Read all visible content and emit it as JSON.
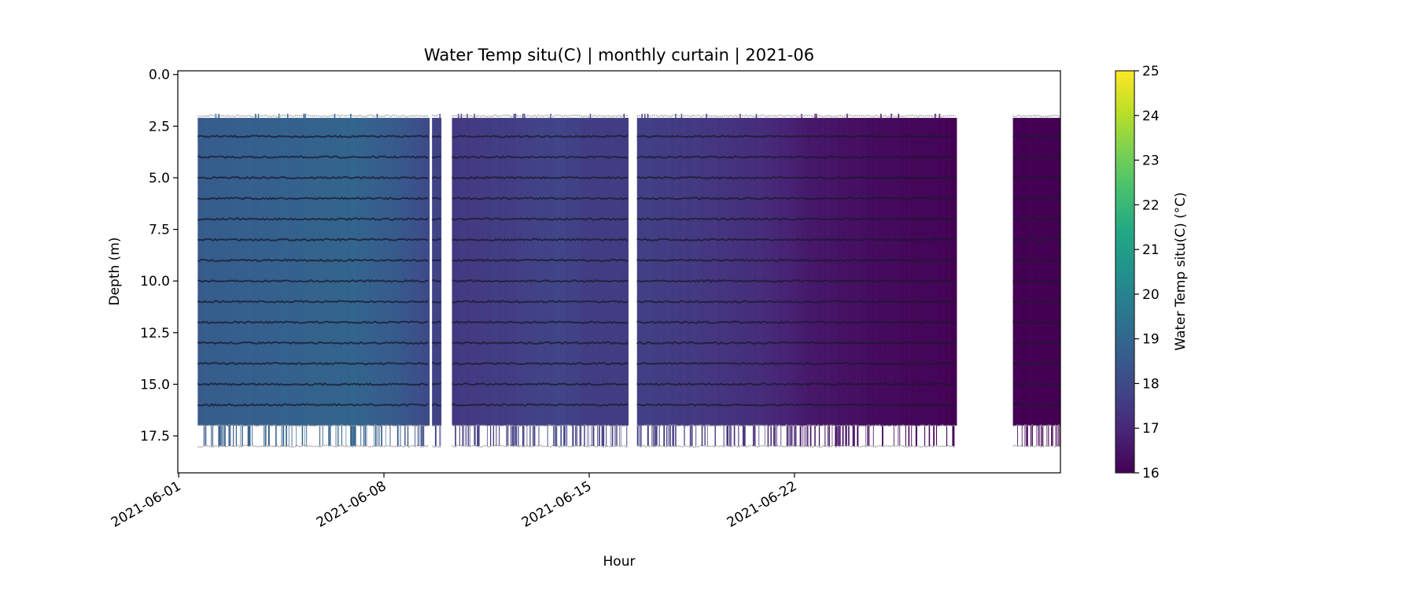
{
  "chart_data": {
    "type": "heatmap",
    "title": "Water Temp situ(C) | monthly curtain | 2021-06",
    "xlabel": "Hour",
    "ylabel": "Depth (m)",
    "x_unit": "days since 2021-06-01",
    "xlim": [
      -0.03,
      30.07
    ],
    "ylim": [
      19.29,
      -0.18
    ],
    "y_inverted": true,
    "xticks": [
      {
        "value": 0,
        "label": "2021-06-01"
      },
      {
        "value": 7,
        "label": "2021-06-08"
      },
      {
        "value": 14,
        "label": "2021-06-15"
      },
      {
        "value": 21,
        "label": "2021-06-22"
      }
    ],
    "yticks": [
      {
        "value": 0.0,
        "label": "0.0"
      },
      {
        "value": 2.5,
        "label": "2.5"
      },
      {
        "value": 5.0,
        "label": "5.0"
      },
      {
        "value": 7.5,
        "label": "7.5"
      },
      {
        "value": 10.0,
        "label": "10.0"
      },
      {
        "value": 12.5,
        "label": "12.5"
      },
      {
        "value": 15.0,
        "label": "15.0"
      },
      {
        "value": 17.5,
        "label": "17.5"
      }
    ],
    "colormap": "viridis",
    "colorbar": {
      "label": "Water Temp situ(C) (°C)",
      "range": [
        16,
        25
      ],
      "ticks": [
        {
          "value": 16,
          "label": "16"
        },
        {
          "value": 17,
          "label": "17"
        },
        {
          "value": 18,
          "label": "18"
        },
        {
          "value": 19,
          "label": "19"
        },
        {
          "value": 20,
          "label": "20"
        },
        {
          "value": 21,
          "label": "21"
        },
        {
          "value": 22,
          "label": "22"
        },
        {
          "value": 23,
          "label": "23"
        },
        {
          "value": 24,
          "label": "24"
        },
        {
          "value": 25,
          "label": "25"
        }
      ]
    },
    "segments": [
      {
        "start": 0.65,
        "end": 8.55,
        "depth_top": 2.1,
        "depth_bottom": 17.0
      },
      {
        "start": 8.64,
        "end": 8.95,
        "depth_top": 2.1,
        "depth_bottom": 17.0
      },
      {
        "start": 9.32,
        "end": 15.33,
        "depth_top": 2.1,
        "depth_bottom": 17.0
      },
      {
        "start": 15.63,
        "end": 26.53,
        "depth_top": 2.1,
        "depth_bottom": 17.0
      },
      {
        "start": 28.45,
        "end": 30.07,
        "depth_top": 2.1,
        "depth_bottom": 17.0
      }
    ],
    "temperature_trend": [
      [
        0.65,
        18.6
      ],
      [
        3.0,
        18.75
      ],
      [
        6.0,
        18.9
      ],
      [
        7.5,
        18.5
      ],
      [
        8.55,
        18.0
      ],
      [
        8.64,
        17.8
      ],
      [
        8.95,
        17.8
      ],
      [
        9.32,
        17.5
      ],
      [
        11.0,
        17.6
      ],
      [
        13.0,
        17.85
      ],
      [
        14.0,
        17.6
      ],
      [
        15.33,
        17.55
      ],
      [
        15.63,
        17.7
      ],
      [
        18.0,
        17.45
      ],
      [
        20.0,
        17.1
      ],
      [
        21.5,
        16.6
      ],
      [
        24.0,
        16.25
      ],
      [
        26.53,
        16.05
      ],
      [
        28.45,
        16.0
      ],
      [
        30.07,
        16.0
      ]
    ],
    "sensor_depths": [
      2,
      3,
      4,
      5,
      6,
      7,
      8,
      9,
      10,
      11,
      12,
      13,
      14,
      15,
      16,
      17,
      18
    ]
  }
}
